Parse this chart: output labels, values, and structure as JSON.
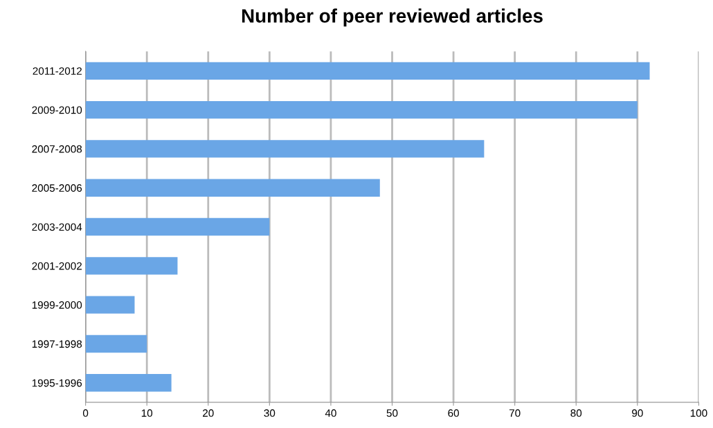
{
  "chart_data": {
    "type": "bar",
    "orientation": "horizontal",
    "title": "Number of peer reviewed articles",
    "categories": [
      "2011-2012",
      "2009-2010",
      "2007-2008",
      "2005-2006",
      "2003-2004",
      "2001-2002",
      "1999-2000",
      "1997-1998",
      "1995-1996"
    ],
    "values": [
      92,
      90,
      65,
      48,
      30,
      15,
      8,
      10,
      14
    ],
    "color": "#6aa6e6",
    "xlim": [
      0,
      100
    ],
    "xticks": [
      0,
      10,
      20,
      30,
      40,
      50,
      60,
      70,
      80,
      90,
      100
    ],
    "grid": "x"
  }
}
